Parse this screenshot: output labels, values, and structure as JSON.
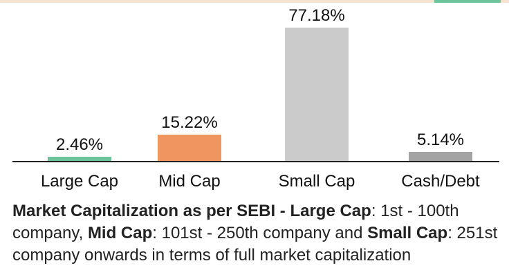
{
  "colors": {
    "top_bar": "#f6e3cf",
    "top_bar_accent": "#6cc49b"
  },
  "chart_data": {
    "type": "bar",
    "categories": [
      "Large Cap",
      "Mid Cap",
      "Small Cap",
      "Cash/Debt"
    ],
    "values": [
      2.46,
      15.22,
      77.18,
      5.14
    ],
    "data_labels": [
      "2.46%",
      "15.22%",
      "77.18%",
      "5.14%"
    ],
    "colors": [
      "#6cc49b",
      "#ef9660",
      "#cbcbcb",
      "#a3a3a3"
    ],
    "unit": "%",
    "ylim": [
      0,
      77.18
    ],
    "grid": false,
    "legend": "none"
  },
  "note": {
    "title": "Market Capitalization as per SEBI -",
    "large_label": "Large Cap",
    "large_text": ": 1st - 100th company, ",
    "mid_label": "Mid Cap",
    "mid_text": ": 101st - 250th company and ",
    "small_label": "Small Cap",
    "small_text": ": 251st company onwards in terms of full market capitalization"
  }
}
